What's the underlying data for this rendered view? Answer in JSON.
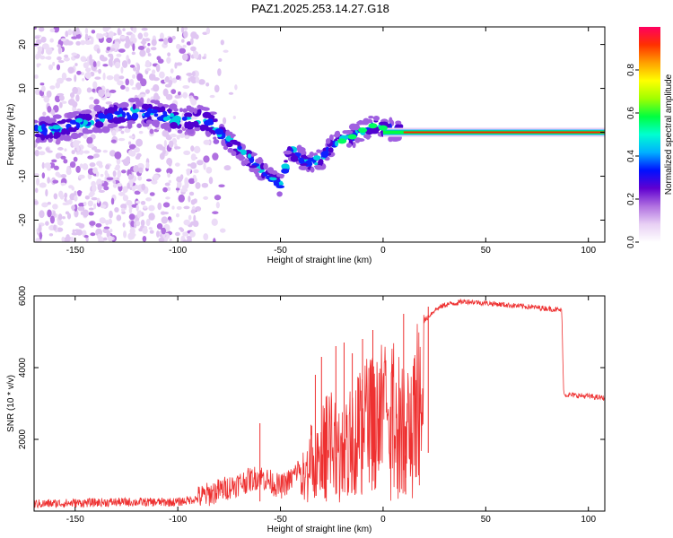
{
  "title": "PAZ1.2025.253.14.27.G18",
  "chart_data": [
    {
      "type": "heatmap",
      "xlabel": "Height of straight line (km)",
      "ylabel": "Frequency (Hz)",
      "xlim": [
        -170,
        108
      ],
      "ylim": [
        -25,
        24
      ],
      "xticks": [
        -150,
        -100,
        -50,
        0,
        50,
        100
      ],
      "yticks": [
        -20,
        -10,
        0,
        10,
        20
      ],
      "colorbar": {
        "label": "Normalized spectral amplitude",
        "range": [
          0,
          1
        ],
        "ticks": [
          "0.0",
          "0.2",
          "0.4",
          "0.6",
          "0.8"
        ],
        "colors": [
          "#ffffff",
          "#e8d0f4",
          "#b070e0",
          "#6000d0",
          "#0010ff",
          "#00b0ff",
          "#00ffd0",
          "#00ff40",
          "#a0ff00",
          "#ffff00",
          "#ffa000",
          "#ff3000",
          "#ff0060"
        ]
      },
      "ridge": {
        "x": [
          -170,
          -160,
          -150,
          -140,
          -130,
          -120,
          -110,
          -100,
          -90,
          -85,
          -80,
          -75,
          -70,
          -65,
          -60,
          -55,
          -50,
          -45,
          -40,
          -35,
          -30,
          -25,
          -20,
          -15,
          -10,
          -5,
          0,
          10,
          20,
          40,
          60,
          80,
          100,
          108
        ],
        "y": [
          0.5,
          0.5,
          2,
          2.5,
          4,
          4.5,
          4,
          3,
          3,
          2.5,
          0,
          -2,
          -4,
          -6,
          -8,
          -10.5,
          -12,
          -4,
          -6,
          -7,
          -6,
          -3,
          -2,
          -1,
          0.5,
          1.5,
          1,
          0,
          0,
          0,
          0,
          0,
          0,
          0
        ]
      }
    },
    {
      "type": "line",
      "xlabel": "Height of straight line (km)",
      "ylabel": "SNR (10 * v/v)",
      "xlim": [
        -170,
        108
      ],
      "ylim": [
        0,
        6000
      ],
      "xticks": [
        -150,
        -100,
        -50,
        0,
        50,
        100
      ],
      "yticks": [
        2000,
        4000,
        6000
      ],
      "color": "#ee3030",
      "envelope": {
        "x": [
          -170,
          -130,
          -100,
          -90,
          -80,
          -70,
          -60,
          -50,
          -45,
          -40,
          -35,
          -30,
          -25,
          -20,
          -18,
          -15,
          -10,
          -5,
          0,
          5,
          10,
          15,
          20,
          25,
          30,
          35,
          40,
          50,
          60,
          70,
          80,
          87,
          88,
          100,
          108
        ],
        "y": [
          150,
          200,
          200,
          300,
          500,
          700,
          900,
          600,
          800,
          1200,
          2200,
          2800,
          3200,
          2500,
          3600,
          3800,
          4000,
          4200,
          4500,
          4800,
          3800,
          4900,
          5300,
          5600,
          5750,
          5800,
          5850,
          5800,
          5750,
          5700,
          5650,
          5600,
          3250,
          3200,
          3150
        ]
      },
      "spikes": [
        {
          "x": -60,
          "y": 2450
        },
        {
          "x": -33,
          "y": 3800
        },
        {
          "x": -30,
          "y": 4300
        },
        {
          "x": -23,
          "y": 4600
        },
        {
          "x": -19,
          "y": 4700
        },
        {
          "x": -15,
          "y": 4400
        },
        {
          "x": -10,
          "y": 4800
        },
        {
          "x": -5,
          "y": 5050
        },
        {
          "x": 10,
          "y": 5500
        },
        {
          "x": 11,
          "y": 1550
        },
        {
          "x": 22,
          "y": 5700
        }
      ]
    }
  ]
}
